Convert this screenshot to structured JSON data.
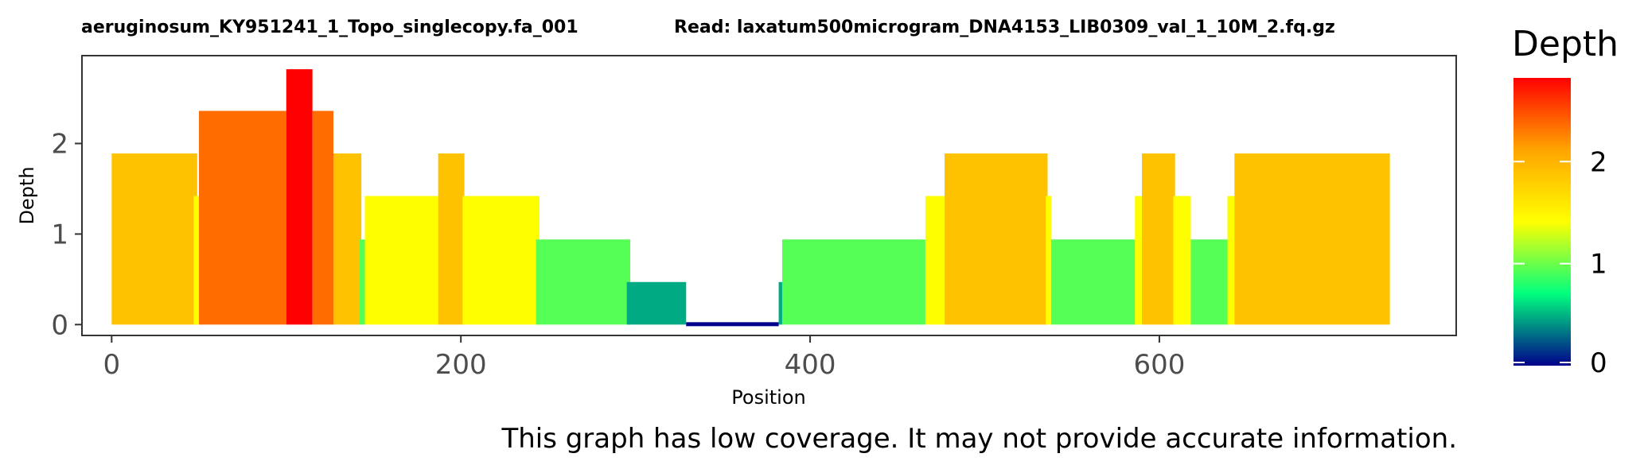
{
  "chart_data": {
    "type": "area",
    "title_left": "aeruginosum_KY951241_1_Topo_singlecopy.fa_001",
    "title_right": "Read: laxatum500microgram_DNA4153_LIB0309_val_1_10M_2.fq.gz",
    "xlabel": "Position",
    "ylabel": "Depth",
    "xlim": [
      -17,
      770
    ],
    "ylim": [
      -0.12,
      2.97
    ],
    "x_ticks": [
      0,
      200,
      400,
      600
    ],
    "y_ticks": [
      0,
      1,
      2
    ],
    "grid": false,
    "legend": {
      "title": "Depth",
      "placement": "right",
      "ticks": [
        0,
        1,
        2
      ],
      "range": [
        0,
        2.82
      ],
      "colors": [
        "#00008B",
        "#00FF7F",
        "#FFFF00",
        "#FFA500",
        "#FF0000"
      ]
    },
    "series": [
      {
        "segments": [
          {
            "x": [
              0,
              49
            ],
            "depth": 1.89
          },
          {
            "x": [
              47,
              50
            ],
            "depth": 1.42
          },
          {
            "x": [
              50,
              100
            ],
            "depth": 2.36
          },
          {
            "x": [
              100,
              115
            ],
            "depth": 2.82
          },
          {
            "x": [
              115,
              127
            ],
            "depth": 2.36
          },
          {
            "x": [
              127,
              143
            ],
            "depth": 1.89
          },
          {
            "x": [
              142,
              145
            ],
            "depth": 0.94
          },
          {
            "x": [
              145,
              188
            ],
            "depth": 1.42
          },
          {
            "x": [
              187,
              202
            ],
            "depth": 1.89
          },
          {
            "x": [
              201,
              245
            ],
            "depth": 1.42
          },
          {
            "x": [
              243,
              297
            ],
            "depth": 0.94
          },
          {
            "x": [
              295,
              329
            ],
            "depth": 0.47
          },
          {
            "x": [
              329,
              382
            ],
            "depth": 0.0
          },
          {
            "x": [
              382,
              384
            ],
            "depth": 0.47
          },
          {
            "x": [
              384,
              466
            ],
            "depth": 0.94
          },
          {
            "x": [
              466,
              477
            ],
            "depth": 1.42
          },
          {
            "x": [
              477,
              536
            ],
            "depth": 1.89
          },
          {
            "x": [
              535,
              538
            ],
            "depth": 1.42
          },
          {
            "x": [
              538,
              587
            ],
            "depth": 0.94
          },
          {
            "x": [
              586,
              590
            ],
            "depth": 1.42
          },
          {
            "x": [
              590,
              609
            ],
            "depth": 1.89
          },
          {
            "x": [
              608,
              618
            ],
            "depth": 1.42
          },
          {
            "x": [
              618,
              640
            ],
            "depth": 0.94
          },
          {
            "x": [
              639,
              643
            ],
            "depth": 1.42
          },
          {
            "x": [
              643,
              732
            ],
            "depth": 1.89
          }
        ]
      }
    ]
  },
  "warning": "This graph has low coverage. It may not provide accurate information."
}
